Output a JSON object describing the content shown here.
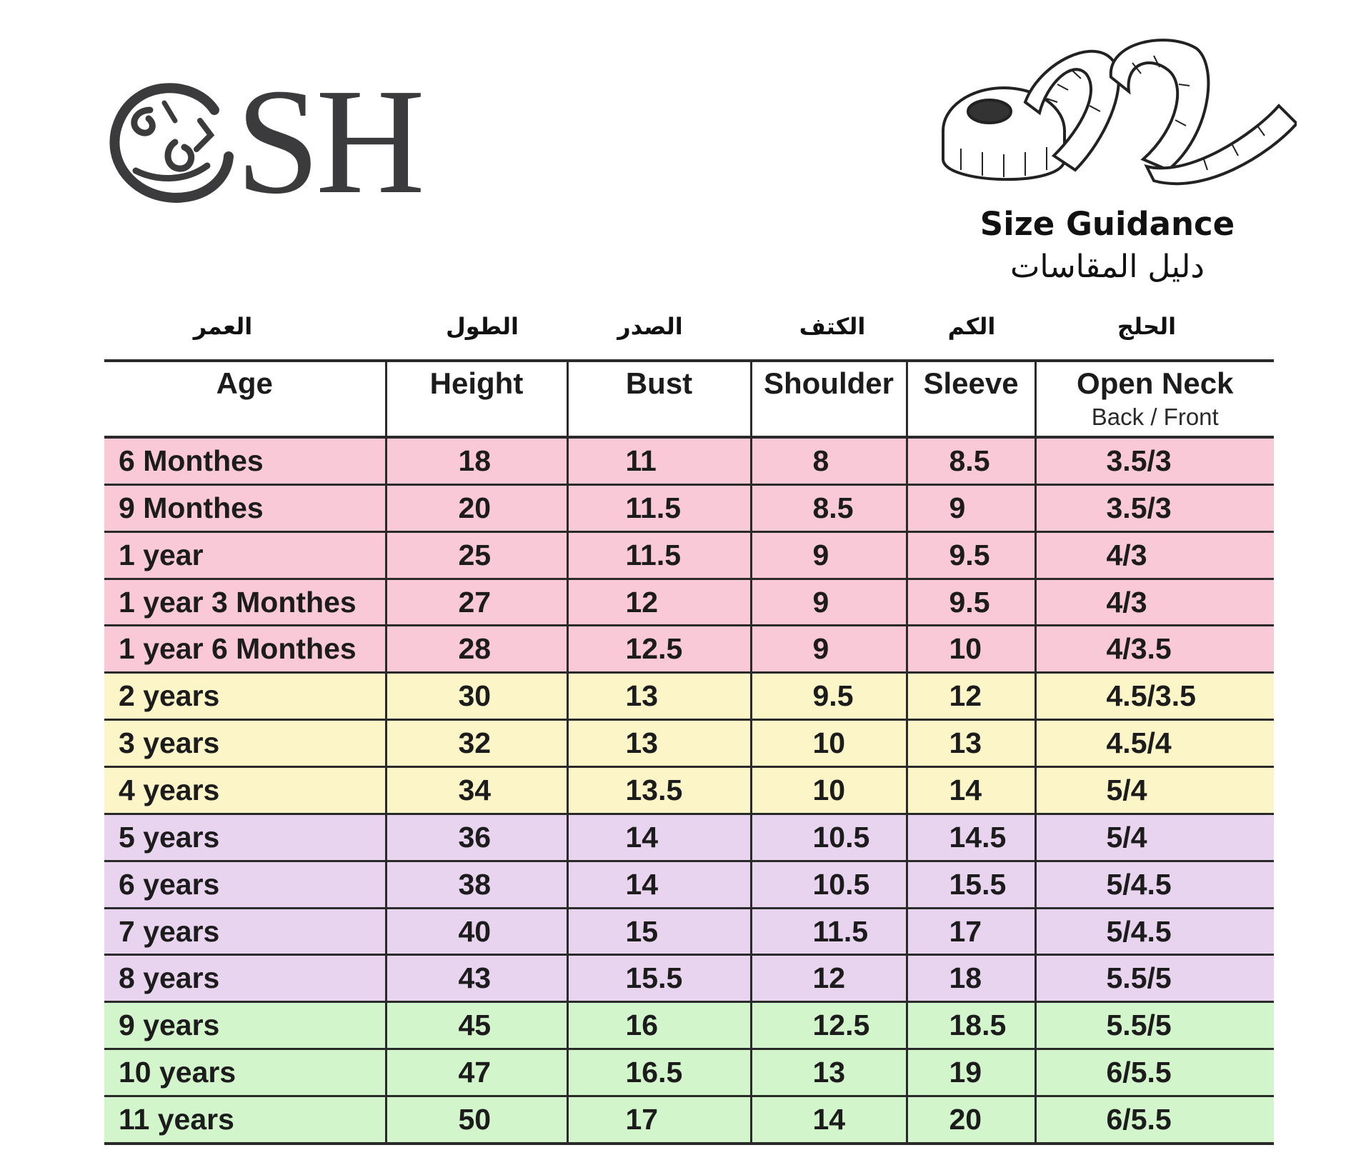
{
  "brand": {
    "logo_text": "SH",
    "logo_icon": "calligraphy-logo-icon",
    "tape_icon": "measuring-tape-icon"
  },
  "guidance": {
    "title_en": "Size Guidance",
    "title_ar": "دليل المقاسات"
  },
  "table": {
    "headers_ar": [
      "العمر",
      "الطول",
      "الصدر",
      "الكتف",
      "الكم",
      "الحلج"
    ],
    "headers_en": [
      "Age",
      "Height",
      "Bust",
      "Shoulder",
      "Sleeve",
      "Open Neck"
    ],
    "open_neck_sub": "Back / Front",
    "row_colors": {
      "pink": "#f9c9d7",
      "yellow": "#fbf5c8",
      "purple": "#e9d4ef",
      "green": "#d2f5cb"
    },
    "rows": [
      {
        "group": "pink",
        "age": "6 Monthes",
        "height": "18",
        "bust": "11",
        "shoulder": "8",
        "sleeve": "8.5",
        "neck": "3.5/3"
      },
      {
        "group": "pink",
        "age": "9 Monthes",
        "height": "20",
        "bust": "11.5",
        "shoulder": "8.5",
        "sleeve": "9",
        "neck": "3.5/3"
      },
      {
        "group": "pink",
        "age": "1 year",
        "height": "25",
        "bust": "11.5",
        "shoulder": "9",
        "sleeve": "9.5",
        "neck": "4/3"
      },
      {
        "group": "pink",
        "age": "1 year 3 Monthes",
        "height": "27",
        "bust": "12",
        "shoulder": "9",
        "sleeve": "9.5",
        "neck": "4/3"
      },
      {
        "group": "pink",
        "age": "1 year 6 Monthes",
        "height": "28",
        "bust": "12.5",
        "shoulder": "9",
        "sleeve": "10",
        "neck": "4/3.5"
      },
      {
        "group": "yellow",
        "age": "2 years",
        "height": "30",
        "bust": "13",
        "shoulder": "9.5",
        "sleeve": "12",
        "neck": "4.5/3.5"
      },
      {
        "group": "yellow",
        "age": "3 years",
        "height": "32",
        "bust": "13",
        "shoulder": "10",
        "sleeve": "13",
        "neck": "4.5/4"
      },
      {
        "group": "yellow",
        "age": "4 years",
        "height": "34",
        "bust": "13.5",
        "shoulder": "10",
        "sleeve": "14",
        "neck": "5/4"
      },
      {
        "group": "purple",
        "age": "5 years",
        "height": "36",
        "bust": "14",
        "shoulder": "10.5",
        "sleeve": "14.5",
        "neck": "5/4"
      },
      {
        "group": "purple",
        "age": "6 years",
        "height": "38",
        "bust": "14",
        "shoulder": "10.5",
        "sleeve": "15.5",
        "neck": "5/4.5"
      },
      {
        "group": "purple",
        "age": "7 years",
        "height": "40",
        "bust": "15",
        "shoulder": "11.5",
        "sleeve": "17",
        "neck": "5/4.5"
      },
      {
        "group": "purple",
        "age": "8 years",
        "height": "43",
        "bust": "15.5",
        "shoulder": "12",
        "sleeve": "18",
        "neck": "5.5/5"
      },
      {
        "group": "green",
        "age": "9 years",
        "height": "45",
        "bust": "16",
        "shoulder": "12.5",
        "sleeve": "18.5",
        "neck": "5.5/5"
      },
      {
        "group": "green",
        "age": "10 years",
        "height": "47",
        "bust": "16.5",
        "shoulder": "13",
        "sleeve": "19",
        "neck": "6/5.5"
      },
      {
        "group": "green",
        "age": "11 years",
        "height": "50",
        "bust": "17",
        "shoulder": "14",
        "sleeve": "20",
        "neck": "6/5.5"
      }
    ]
  }
}
